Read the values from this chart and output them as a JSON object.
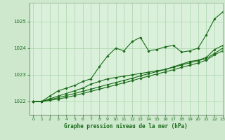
{
  "background_color": "#cde8cd",
  "plot_bg_color": "#daf0da",
  "grid_color": "#aad4aa",
  "title": "Graphe pression niveau de la mer (hPa)",
  "xlim": [
    -0.5,
    23
  ],
  "ylim": [
    1021.5,
    1025.7
  ],
  "yticks": [
    1022,
    1023,
    1024,
    1025
  ],
  "xticks": [
    0,
    1,
    2,
    3,
    4,
    5,
    6,
    7,
    8,
    9,
    10,
    11,
    12,
    13,
    14,
    15,
    16,
    17,
    18,
    19,
    20,
    21,
    22,
    23
  ],
  "line_color": "#1a6b1a",
  "marker": "D",
  "markersize": 1.8,
  "linewidth": 0.8,
  "series": [
    [
      1022.0,
      1022.0,
      1022.2,
      1022.4,
      1022.5,
      1022.6,
      1022.75,
      1022.85,
      1023.3,
      1023.7,
      1024.0,
      1023.9,
      1024.25,
      1024.4,
      1023.9,
      1023.95,
      1024.05,
      1024.1,
      1023.85,
      1023.9,
      1024.0,
      1024.5,
      1025.1,
      1025.35
    ],
    [
      1022.0,
      1022.0,
      1022.1,
      1022.2,
      1022.3,
      1022.4,
      1022.5,
      1022.65,
      1022.75,
      1022.85,
      1022.9,
      1022.95,
      1023.0,
      1023.05,
      1023.1,
      1023.15,
      1023.2,
      1023.3,
      1023.4,
      1023.5,
      1023.55,
      1023.65,
      1023.95,
      1024.1
    ],
    [
      1022.0,
      1022.0,
      1022.07,
      1022.14,
      1022.22,
      1022.3,
      1022.38,
      1022.46,
      1022.55,
      1022.63,
      1022.71,
      1022.79,
      1022.87,
      1022.96,
      1023.04,
      1023.12,
      1023.2,
      1023.28,
      1023.37,
      1023.45,
      1023.53,
      1023.61,
      1023.8,
      1024.0
    ],
    [
      1022.0,
      1022.0,
      1022.04,
      1022.09,
      1022.15,
      1022.22,
      1022.3,
      1022.38,
      1022.46,
      1022.54,
      1022.62,
      1022.7,
      1022.78,
      1022.87,
      1022.95,
      1023.03,
      1023.11,
      1023.19,
      1023.28,
      1023.36,
      1023.44,
      1023.55,
      1023.75,
      1023.9
    ]
  ]
}
